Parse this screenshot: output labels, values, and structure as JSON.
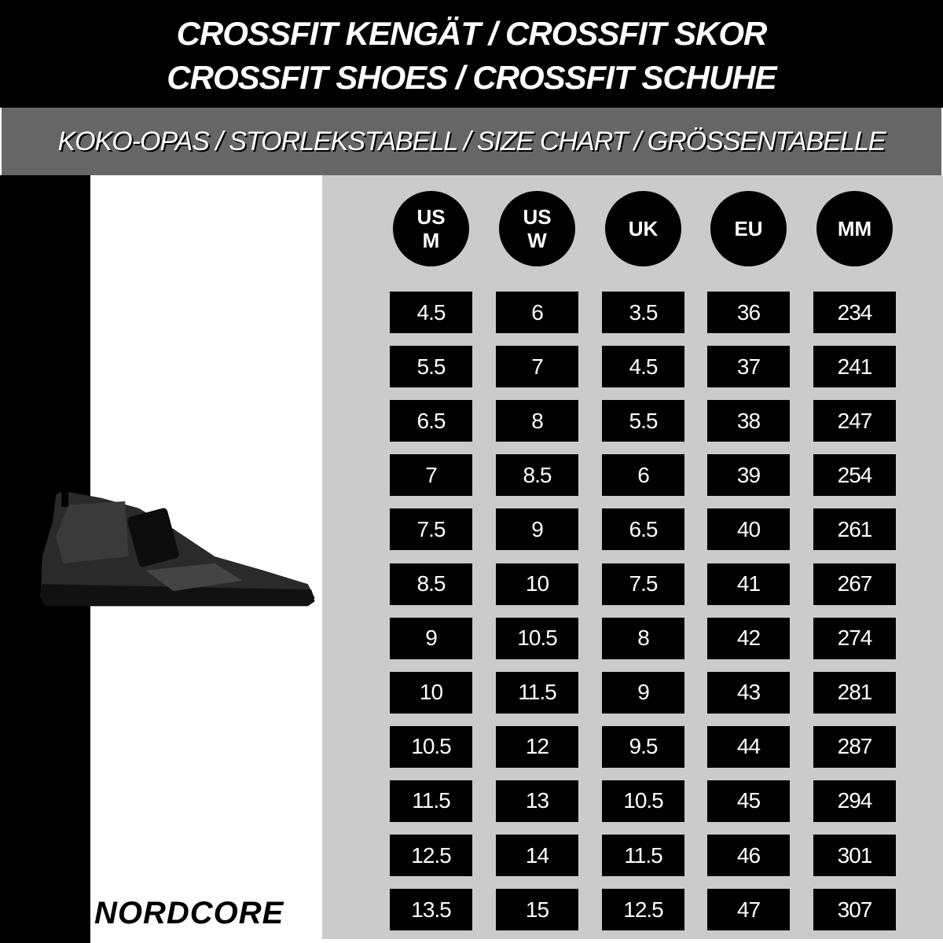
{
  "header": {
    "title_line1": "CROSSFIT KENGÄT / CROSSFIT SKOR",
    "title_line2": "CROSSFIT SHOES / CROSSFIT SCHUHE",
    "subtitle": "KOKO-OPAS / STORLEKSTABELL / SIZE CHART / GRÖSSENTABELLE"
  },
  "brand": "NORDCORE",
  "product_image": "black-crossfit-shoe",
  "colors": {
    "header_bg": "#000000",
    "band_bg": "#666666",
    "panel_bg": "#cbcbcb",
    "cell_bg": "#000000",
    "text": "#ffffff"
  },
  "table": {
    "columns": [
      "US\nM",
      "US\nW",
      "UK",
      "EU",
      "MM"
    ],
    "rows": [
      [
        "4.5",
        "6",
        "3.5",
        "36",
        "234"
      ],
      [
        "5.5",
        "7",
        "4.5",
        "37",
        "241"
      ],
      [
        "6.5",
        "8",
        "5.5",
        "38",
        "247"
      ],
      [
        "7",
        "8.5",
        "6",
        "39",
        "254"
      ],
      [
        "7.5",
        "9",
        "6.5",
        "40",
        "261"
      ],
      [
        "8.5",
        "10",
        "7.5",
        "41",
        "267"
      ],
      [
        "9",
        "10.5",
        "8",
        "42",
        "274"
      ],
      [
        "10",
        "11.5",
        "9",
        "43",
        "281"
      ],
      [
        "10.5",
        "12",
        "9.5",
        "44",
        "287"
      ],
      [
        "11.5",
        "13",
        "10.5",
        "45",
        "294"
      ],
      [
        "12.5",
        "14",
        "11.5",
        "46",
        "301"
      ],
      [
        "13.5",
        "15",
        "12.5",
        "47",
        "307"
      ]
    ]
  }
}
